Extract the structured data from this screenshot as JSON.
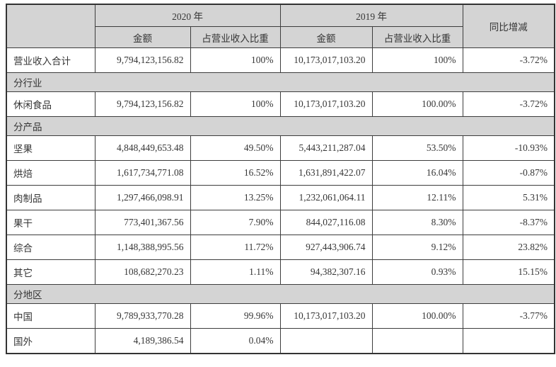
{
  "table": {
    "header": {
      "corner": "",
      "year_2020": "2020 年",
      "year_2019": "2019 年",
      "yoy": "同比增减",
      "amount_2020": "金额",
      "share_2020": "占营业收入比重",
      "amount_2019": "金额",
      "share_2019": "占营业收入比重"
    },
    "rows": [
      {
        "type": "data",
        "shaded": true,
        "label": "营业收入合计",
        "amount_2020": "9,794,123,156.82",
        "share_2020": "100%",
        "amount_2019": "10,173,017,103.20",
        "share_2019": "100%",
        "yoy": "-3.72%"
      },
      {
        "type": "section",
        "label": "分行业"
      },
      {
        "type": "data",
        "shaded": false,
        "label": "休闲食品",
        "amount_2020": "9,794,123,156.82",
        "share_2020": "100%",
        "amount_2019": "10,173,017,103.20",
        "share_2019": "100.00%",
        "yoy": "-3.72%"
      },
      {
        "type": "section",
        "label": "分产品"
      },
      {
        "type": "data",
        "shaded": false,
        "label": "坚果",
        "amount_2020": "4,848,449,653.48",
        "share_2020": "49.50%",
        "amount_2019": "5,443,211,287.04",
        "share_2019": "53.50%",
        "yoy": "-10.93%"
      },
      {
        "type": "data",
        "shaded": false,
        "label": "烘焙",
        "amount_2020": "1,617,734,771.08",
        "share_2020": "16.52%",
        "amount_2019": "1,631,891,422.07",
        "share_2019": "16.04%",
        "yoy": "-0.87%"
      },
      {
        "type": "data",
        "shaded": false,
        "label": "肉制品",
        "amount_2020": "1,297,466,098.91",
        "share_2020": "13.25%",
        "amount_2019": "1,232,061,064.11",
        "share_2019": "12.11%",
        "yoy": "5.31%"
      },
      {
        "type": "data",
        "shaded": false,
        "label": "果干",
        "amount_2020": "773,401,367.56",
        "share_2020": "7.90%",
        "amount_2019": "844,027,116.08",
        "share_2019": "8.30%",
        "yoy": "-8.37%"
      },
      {
        "type": "data",
        "shaded": false,
        "label": "综合",
        "amount_2020": "1,148,388,995.56",
        "share_2020": "11.72%",
        "amount_2019": "927,443,906.74",
        "share_2019": "9.12%",
        "yoy": "23.82%"
      },
      {
        "type": "data",
        "shaded": false,
        "label": "其它",
        "amount_2020": "108,682,270.23",
        "share_2020": "1.11%",
        "amount_2019": "94,382,307.16",
        "share_2019": "0.93%",
        "yoy": "15.15%"
      },
      {
        "type": "section",
        "label": "分地区"
      },
      {
        "type": "data",
        "shaded": false,
        "label": "中国",
        "amount_2020": "9,789,933,770.28",
        "share_2020": "99.96%",
        "amount_2019": "10,173,017,103.20",
        "share_2019": "100.00%",
        "yoy": "-3.77%"
      },
      {
        "type": "data",
        "shaded": false,
        "label": "国外",
        "amount_2020": "4,189,386.54",
        "share_2020": "0.04%",
        "amount_2019": "",
        "share_2019": "",
        "yoy": ""
      }
    ],
    "colors": {
      "shaded_bg": "#d4d4d4",
      "border": "#3d3d3d",
      "text": "#363636"
    }
  }
}
